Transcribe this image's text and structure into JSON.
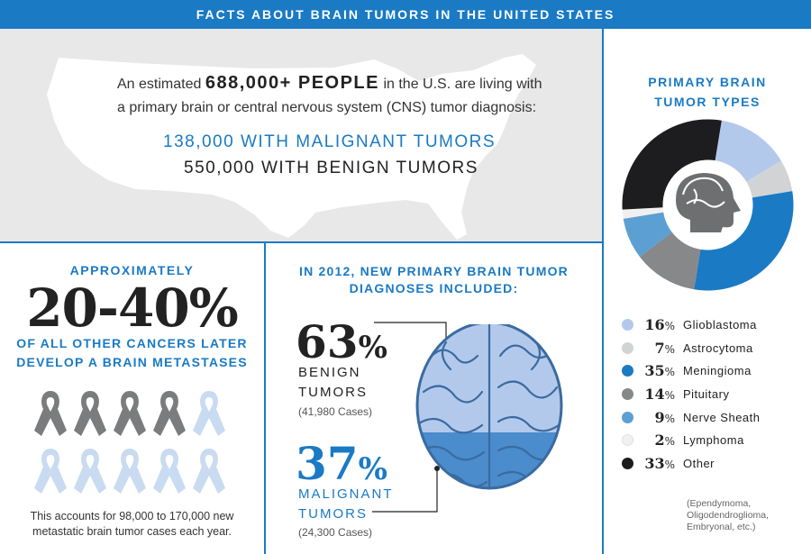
{
  "header": {
    "title": "FACTS ABOUT BRAIN TUMORS IN THE UNITED STATES"
  },
  "top": {
    "prefix": "An estimated ",
    "big": "688,000+ PEOPLE",
    "suffix": " in the U.S. are living with",
    "line2": "a primary brain or central nervous system (CNS) tumor diagnosis:",
    "malignant": "138,000 WITH MALIGNANT TUMORS",
    "benign": "550,000 WITH BENIGN TUMORS"
  },
  "left": {
    "approx": "APPROXIMATELY",
    "range": "20-40%",
    "line1": "OF ALL OTHER CANCERS LATER",
    "line2": "DEVELOP A BRAIN METASTASES",
    "ribbons_total": 10,
    "ribbons_dark": 4,
    "accounts1": "This accounts for 98,000 to 170,000 new",
    "accounts2": "metastatic brain tumor cases each year."
  },
  "middle": {
    "title1": "IN 2012, NEW PRIMARY BRAIN TUMOR",
    "title2": "DIAGNOSES INCLUDED:",
    "benign_pct": "63",
    "benign_lbl1": "BENIGN",
    "benign_lbl2": "TUMORS",
    "benign_cases": "(41,980 Cases)",
    "malignant_pct": "37",
    "malignant_lbl1": "MALIGNANT",
    "malignant_lbl2": "TUMORS",
    "malignant_cases": "(24,300 Cases)",
    "pct_symbol": "%"
  },
  "right": {
    "title1": "PRIMARY BRAIN",
    "title2": "TUMOR TYPES",
    "note1": "(Ependymoma,",
    "note2": "Oligodendroglioma,",
    "note3": "Embryonal, etc.)"
  },
  "chart_data": {
    "type": "pie",
    "title": "PRIMARY BRAIN TUMOR TYPES",
    "categories": [
      "Glioblastoma",
      "Astrocytoma",
      "Meningioma",
      "Pituitary",
      "Nerve Sheath",
      "Lymphoma",
      "Other"
    ],
    "values": [
      16,
      7,
      35,
      14,
      9,
      2,
      33
    ],
    "colors": [
      "#b3c9ec",
      "#d2d3d5",
      "#1a7ac4",
      "#87888a",
      "#5c9fd3",
      "#f0f0f0",
      "#1d1d1f"
    ],
    "unit": "%"
  }
}
